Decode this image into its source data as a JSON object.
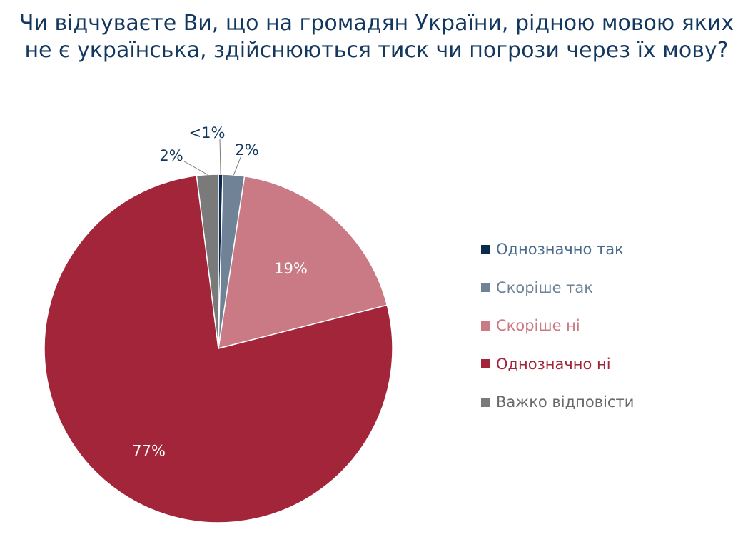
{
  "title": {
    "line1": "Чи відчуваєте Ви, що на громадян України, рідною мовою яких",
    "line2": "не є українська, здійснюються тиск чи погрози через їх мову?"
  },
  "chart_data": {
    "type": "pie",
    "title": "Чи відчуваєте Ви, що на громадян України, рідною мовою яких не є українська, здійснюються тиск чи погрози через їх мову?",
    "slices": [
      {
        "name": "Однозначно так",
        "value": 0.4,
        "label": "<1%",
        "color": "#0c2a4d",
        "text_color": "#4a6a8a"
      },
      {
        "name": "Скоріше так",
        "value": 2,
        "label": "2%",
        "color": "#6f8296",
        "text_color": "#6f8296"
      },
      {
        "name": "Скоріше ні",
        "value": 18.6,
        "label": "19%",
        "color": "#c97a84",
        "text_color": "#c97a84"
      },
      {
        "name": "Однозначно ні",
        "value": 77,
        "label": "77%",
        "color": "#a3253a",
        "text_color": "#a3253a"
      },
      {
        "name": "Важко відповісти",
        "value": 2,
        "label": "2%",
        "color": "#7a7a7a",
        "text_color": "#6a6a6a"
      }
    ],
    "legend_position": "right"
  }
}
